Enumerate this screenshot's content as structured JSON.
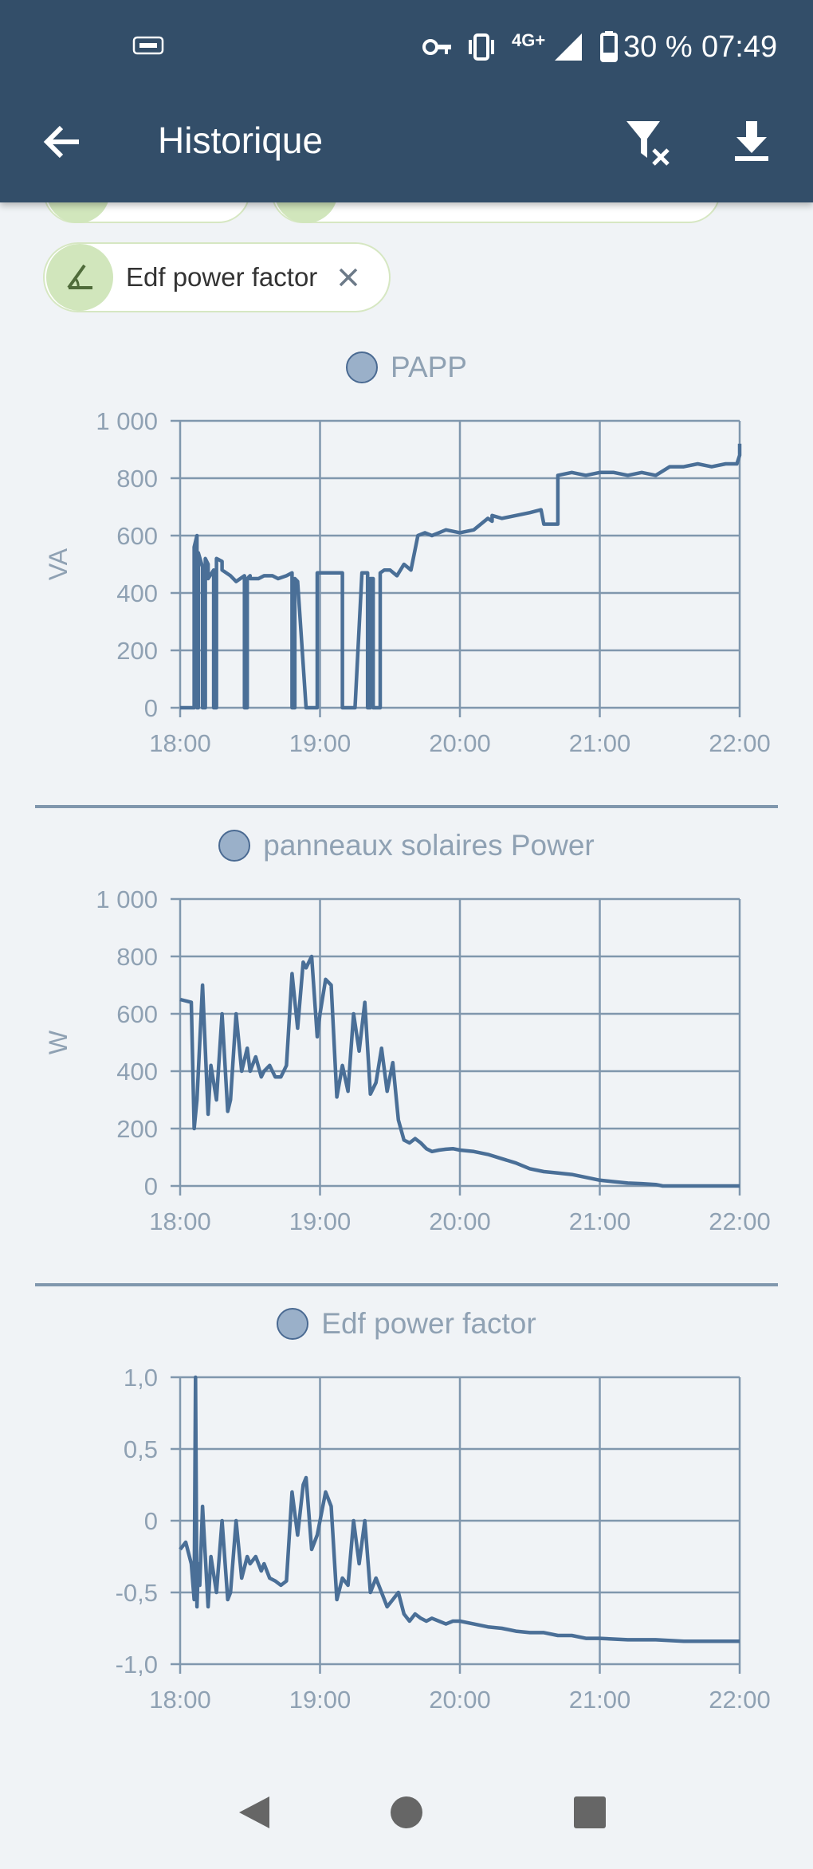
{
  "status_bar": {
    "network": "4G+",
    "battery": "30 %",
    "time": "07:49"
  },
  "app_bar": {
    "title": "Historique",
    "back_icon": "arrow-left-icon",
    "filter_clear_icon": "filter-remove-icon",
    "download_icon": "download-icon"
  },
  "chips": [
    {
      "label": "Edf power factor",
      "icon": "angle-icon"
    }
  ],
  "colors": {
    "app_bar": "#334e69",
    "line": "#4a6f97",
    "grid": "#8097ad",
    "axis_text": "#8fa1b3",
    "chip_avatar": "#d1e6bc"
  },
  "chart_data": [
    {
      "type": "line",
      "title": "PAPP",
      "ylabel": "VA",
      "xticks": [
        "18:00",
        "19:00",
        "20:00",
        "21:00",
        "22:00"
      ],
      "yticks": [
        "0",
        "200",
        "400",
        "600",
        "800",
        "1 000"
      ],
      "ylim": [
        0,
        1000
      ],
      "xlim": [
        0,
        4
      ],
      "grid": true,
      "series": [
        {
          "name": "PAPP",
          "x": [
            0,
            0.1,
            0.1,
            0.12,
            0.12,
            0.13,
            0.13,
            0.16,
            0.16,
            0.18,
            0.18,
            0.2,
            0.2,
            0.24,
            0.24,
            0.26,
            0.26,
            0.3,
            0.3,
            0.36,
            0.4,
            0.46,
            0.46,
            0.48,
            0.48,
            0.5,
            0.5,
            0.56,
            0.6,
            0.66,
            0.7,
            0.76,
            0.8,
            0.8,
            0.82,
            0.82,
            0.84,
            0.9,
            0.95,
            0.98,
            0.98,
            1.16,
            1.16,
            1.2,
            1.25,
            1.3,
            1.34,
            1.34,
            1.36,
            1.36,
            1.38,
            1.38,
            1.43,
            1.43,
            1.46,
            1.5,
            1.55,
            1.6,
            1.65,
            1.7,
            1.75,
            1.8,
            1.85,
            1.9,
            2.0,
            2.1,
            2.2,
            2.23,
            2.23,
            2.3,
            2.4,
            2.5,
            2.58,
            2.6,
            2.7,
            2.7,
            2.8,
            2.9,
            3.0,
            3.1,
            3.2,
            3.3,
            3.4,
            3.5,
            3.6,
            3.7,
            3.8,
            3.9,
            3.98,
            4.0,
            4.0
          ],
          "values": [
            0,
            0,
            560,
            600,
            0,
            0,
            540,
            490,
            0,
            0,
            520,
            500,
            450,
            480,
            0,
            0,
            520,
            510,
            480,
            460,
            440,
            460,
            0,
            0,
            450,
            460,
            450,
            450,
            460,
            460,
            450,
            460,
            470,
            0,
            0,
            450,
            440,
            0,
            0,
            0,
            470,
            470,
            0,
            0,
            0,
            470,
            470,
            0,
            0,
            450,
            450,
            0,
            0,
            470,
            480,
            480,
            460,
            500,
            480,
            600,
            610,
            600,
            610,
            620,
            610,
            620,
            660,
            650,
            670,
            660,
            670,
            680,
            690,
            640,
            640,
            810,
            820,
            810,
            820,
            820,
            810,
            820,
            810,
            840,
            840,
            850,
            840,
            850,
            850,
            880,
            920
          ]
        }
      ]
    },
    {
      "type": "line",
      "title": "panneaux solaires Power",
      "ylabel": "W",
      "xticks": [
        "18:00",
        "19:00",
        "20:00",
        "21:00",
        "22:00"
      ],
      "yticks": [
        "0",
        "200",
        "400",
        "600",
        "800",
        "1 000"
      ],
      "ylim": [
        0,
        1000
      ],
      "xlim": [
        0,
        4
      ],
      "grid": true,
      "series": [
        {
          "name": "panneaux solaires Power",
          "x": [
            0,
            0.08,
            0.1,
            0.12,
            0.16,
            0.2,
            0.22,
            0.26,
            0.3,
            0.34,
            0.36,
            0.4,
            0.44,
            0.48,
            0.5,
            0.54,
            0.58,
            0.6,
            0.64,
            0.68,
            0.72,
            0.76,
            0.8,
            0.84,
            0.88,
            0.9,
            0.94,
            0.98,
            1.0,
            1.04,
            1.08,
            1.12,
            1.16,
            1.2,
            1.24,
            1.28,
            1.32,
            1.36,
            1.4,
            1.44,
            1.48,
            1.52,
            1.56,
            1.6,
            1.64,
            1.68,
            1.72,
            1.76,
            1.8,
            1.85,
            1.9,
            1.95,
            2.0,
            2.1,
            2.2,
            2.3,
            2.4,
            2.5,
            2.6,
            2.7,
            2.8,
            2.9,
            3.0,
            3.1,
            3.2,
            3.3,
            3.4,
            3.45,
            3.6,
            3.8,
            4.0
          ],
          "values": [
            650,
            640,
            200,
            300,
            700,
            250,
            420,
            300,
            600,
            260,
            300,
            600,
            400,
            480,
            400,
            450,
            380,
            400,
            420,
            380,
            380,
            420,
            740,
            550,
            780,
            760,
            800,
            520,
            600,
            720,
            700,
            310,
            420,
            330,
            600,
            470,
            640,
            320,
            360,
            480,
            330,
            430,
            230,
            160,
            150,
            165,
            150,
            130,
            120,
            125,
            128,
            130,
            125,
            120,
            110,
            95,
            80,
            60,
            50,
            45,
            40,
            30,
            20,
            15,
            10,
            8,
            5,
            0,
            0,
            0,
            0
          ]
        }
      ]
    },
    {
      "type": "line",
      "title": "Edf power factor",
      "ylabel": "",
      "xticks": [
        "18:00",
        "19:00",
        "20:00",
        "21:00",
        "22:00"
      ],
      "yticks": [
        "-1,0",
        "-0,5",
        "0",
        "0,5",
        "1,0"
      ],
      "ylim": [
        -1,
        1
      ],
      "xlim": [
        0,
        4
      ],
      "grid": true,
      "series": [
        {
          "name": "Edf power factor",
          "x": [
            0,
            0.04,
            0.08,
            0.1,
            0.11,
            0.12,
            0.13,
            0.14,
            0.16,
            0.2,
            0.22,
            0.26,
            0.3,
            0.34,
            0.36,
            0.4,
            0.44,
            0.48,
            0.5,
            0.54,
            0.58,
            0.6,
            0.64,
            0.68,
            0.72,
            0.76,
            0.8,
            0.84,
            0.88,
            0.9,
            0.94,
            0.98,
            1.0,
            1.04,
            1.08,
            1.12,
            1.16,
            1.2,
            1.24,
            1.28,
            1.32,
            1.36,
            1.4,
            1.44,
            1.48,
            1.52,
            1.56,
            1.6,
            1.64,
            1.68,
            1.72,
            1.76,
            1.8,
            1.85,
            1.9,
            1.95,
            2.0,
            2.1,
            2.2,
            2.3,
            2.4,
            2.5,
            2.6,
            2.7,
            2.8,
            2.9,
            3.0,
            3.2,
            3.4,
            3.6,
            3.8,
            4.0
          ],
          "values": [
            -0.2,
            -0.15,
            -0.3,
            -0.55,
            1.0,
            -0.6,
            -0.3,
            -0.45,
            0.1,
            -0.6,
            -0.25,
            -0.5,
            0.0,
            -0.55,
            -0.5,
            0.0,
            -0.4,
            -0.25,
            -0.3,
            -0.25,
            -0.35,
            -0.3,
            -0.4,
            -0.42,
            -0.45,
            -0.42,
            0.2,
            -0.1,
            0.25,
            0.3,
            -0.2,
            -0.1,
            0.0,
            0.2,
            0.1,
            -0.55,
            -0.4,
            -0.45,
            0.0,
            -0.3,
            0.0,
            -0.5,
            -0.4,
            -0.5,
            -0.6,
            -0.55,
            -0.5,
            -0.65,
            -0.7,
            -0.65,
            -0.68,
            -0.7,
            -0.68,
            -0.7,
            -0.72,
            -0.7,
            -0.7,
            -0.72,
            -0.74,
            -0.75,
            -0.77,
            -0.78,
            -0.78,
            -0.8,
            -0.8,
            -0.82,
            -0.82,
            -0.83,
            -0.83,
            -0.84,
            -0.84,
            -0.84
          ]
        }
      ]
    }
  ]
}
